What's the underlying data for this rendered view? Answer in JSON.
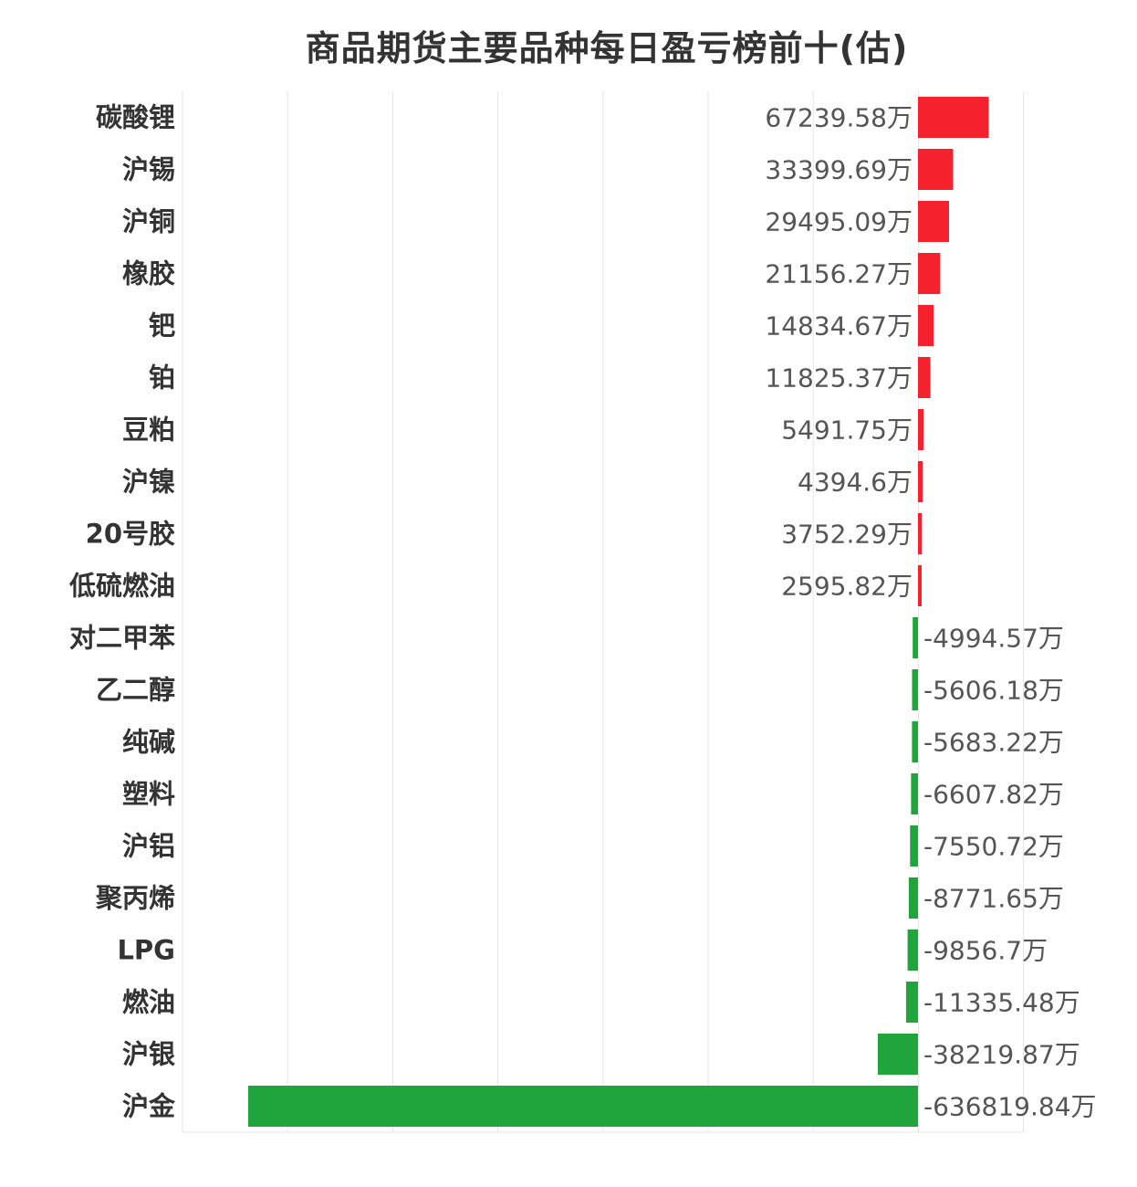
{
  "chart_data": {
    "type": "bar",
    "orientation": "horizontal",
    "title": "商品期货主要品种每日盈亏榜前十(估)",
    "unit": "万",
    "categories": [
      "碳酸锂",
      "沪锡",
      "沪铜",
      "橡胶",
      "钯",
      "铂",
      "豆粕",
      "沪镍",
      "20号胶",
      "低硫燃油",
      "对二甲苯",
      "乙二醇",
      "纯碱",
      "塑料",
      "沪铝",
      "聚丙烯",
      "LPG",
      "燃油",
      "沪银",
      "沪金"
    ],
    "values": [
      67239.58,
      33399.69,
      29495.09,
      21156.27,
      14834.67,
      11825.37,
      5491.75,
      4394.6,
      3752.29,
      2595.82,
      -4994.57,
      -5606.18,
      -5683.22,
      -6607.82,
      -7550.72,
      -8771.65,
      -9856.7,
      -11335.48,
      -38219.87,
      -636819.84
    ],
    "value_labels": [
      "67239.58万",
      "33399.69万",
      "29495.09万",
      "21156.27万",
      "14834.67万",
      "11825.37万",
      "5491.75万",
      "4394.6万",
      "3752.29万",
      "2595.82万",
      "-4994.57万",
      "-5606.18万",
      "-5683.22万",
      "-6607.82万",
      "-7550.72万",
      "-8771.65万",
      "-9856.7万",
      "-11335.48万",
      "-38219.87万",
      "-636819.84万"
    ],
    "xlim": [
      -700000,
      100000
    ],
    "grid": true,
    "colors": {
      "positive": "#f5222d",
      "negative": "#1fa53b",
      "grid": "#e6e6e6",
      "text": "#333333",
      "value_text": "#555555"
    }
  }
}
